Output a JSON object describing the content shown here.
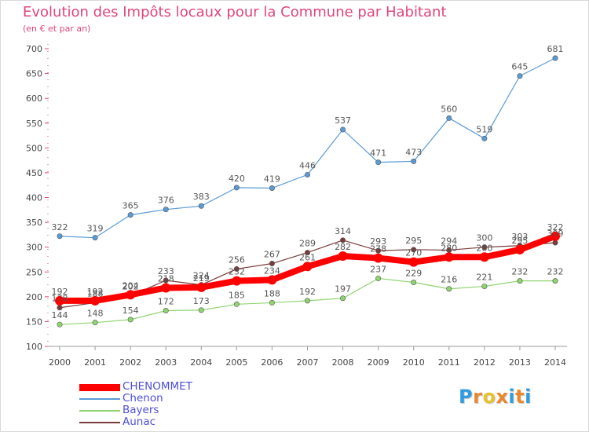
{
  "chart_data": {
    "type": "line",
    "title": "Evolution des Impôts locaux pour la Commune par Habitant",
    "subtitle": "(en € et par an)",
    "x": [
      "2000",
      "2001",
      "2002",
      "2003",
      "2004",
      "2005",
      "2006",
      "2007",
      "2008",
      "2009",
      "2010",
      "2011",
      "2012",
      "2013",
      "2014"
    ],
    "ylim": [
      100,
      700
    ],
    "yticks": [
      100,
      150,
      200,
      250,
      300,
      350,
      400,
      450,
      500,
      550,
      600,
      650,
      700
    ],
    "grid": false,
    "legend_position": "bottom-left",
    "series": [
      {
        "name": "CHENOMMET",
        "color": "#ff0000",
        "values": [
          192,
          192,
          204,
          218,
          219,
          232,
          234,
          261,
          282,
          278,
          270,
          280,
          280,
          295,
          322
        ]
      },
      {
        "name": "Chenon",
        "color": "#5b9bd5",
        "values": [
          322,
          319,
          365,
          376,
          383,
          420,
          419,
          446,
          537,
          471,
          473,
          560,
          519,
          645,
          681
        ]
      },
      {
        "name": "Bayers",
        "color": "#8fd46f",
        "values": [
          144,
          148,
          154,
          172,
          173,
          185,
          188,
          192,
          197,
          237,
          229,
          216,
          221,
          232,
          232
        ]
      },
      {
        "name": "Aunac",
        "color": "#7a3b3b",
        "values": [
          178,
          188,
          202,
          233,
          224,
          256,
          267,
          289,
          314,
          293,
          295,
          294,
          300,
          303,
          309
        ]
      }
    ]
  },
  "logo": {
    "text": "Proxiti",
    "colors": [
      "#2e9de0",
      "#e8872e",
      "#e8c12e",
      "#e8872e",
      "#2e9de0",
      "#e8872e",
      "#2e9de0"
    ]
  }
}
